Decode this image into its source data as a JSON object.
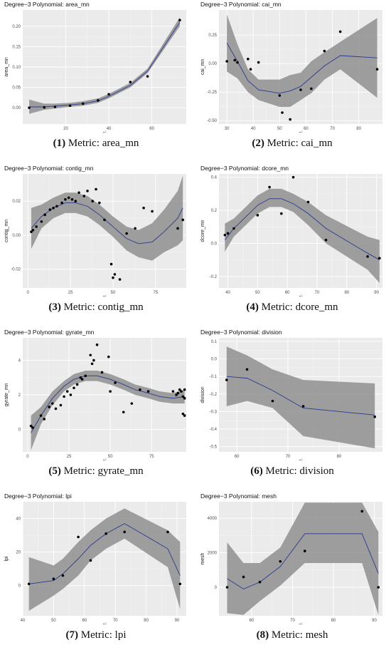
{
  "chart_data": [
    {
      "type": "line",
      "title": "Degree−3 Polynomial: area_mn",
      "xlabel": "ai",
      "ylabel": "area_mn",
      "caption": {
        "num": "(1)",
        "text": "Metric: area_mn"
      },
      "xlim": [
        0,
        76
      ],
      "ylim": [
        -0.04,
        0.24
      ],
      "xticks": [
        20,
        40,
        60
      ],
      "xtick_labels": [
        "20",
        "40",
        "60"
      ],
      "yticks": [
        0.0,
        0.05,
        0.1,
        0.15,
        0.2
      ],
      "ytick_labels": [
        "0.00",
        "0.05",
        "0.10",
        "0.15",
        "0.20"
      ],
      "points": {
        "x": [
          3,
          10,
          15,
          22,
          28,
          35,
          40,
          50,
          58,
          73
        ],
        "y": [
          0.0,
          0.001,
          0.002,
          0.005,
          0.01,
          0.018,
          0.033,
          0.063,
          0.077,
          0.215
        ]
      },
      "fit": {
        "x": [
          3,
          10,
          15,
          22,
          28,
          35,
          40,
          50,
          58,
          73
        ],
        "y": [
          0.002,
          0.002,
          0.004,
          0.007,
          0.01,
          0.017,
          0.028,
          0.055,
          0.09,
          0.21
        ]
      },
      "band_lo": [
        -0.015,
        -0.005,
        -0.002,
        0.002,
        0.005,
        0.012,
        0.023,
        0.05,
        0.085,
        0.2
      ],
      "band_hi": [
        0.02,
        0.01,
        0.01,
        0.012,
        0.016,
        0.023,
        0.034,
        0.061,
        0.096,
        0.222
      ],
      "series": [
        {
          "values": [
            0.002,
            0.002,
            0.004,
            0.007,
            0.01,
            0.017,
            0.028,
            0.055,
            0.09,
            0.21
          ]
        }
      ]
    },
    {
      "type": "line",
      "title": "Degree−3 Polynomial: cai_mn",
      "xlabel": "ai",
      "ylabel": "cai_mn",
      "caption": {
        "num": "(2)",
        "text": "Metric: cai_mn"
      },
      "xlim": [
        27,
        89
      ],
      "ylim": [
        -0.53,
        0.47
      ],
      "xticks": [
        30,
        40,
        50,
        60,
        70,
        80
      ],
      "xtick_labels": [
        "30",
        "40",
        "50",
        "60",
        "70",
        "80"
      ],
      "yticks": [
        -0.5,
        -0.25,
        0.0,
        0.25
      ],
      "ytick_labels": [
        "-0.50",
        "-0.25",
        "0.00",
        "0.25"
      ],
      "points": {
        "x": [
          30,
          33,
          34,
          38,
          39,
          42,
          50,
          51,
          54,
          58,
          62,
          67,
          73,
          87
        ],
        "y": [
          0.02,
          0.03,
          0.01,
          0.04,
          -0.05,
          0.01,
          -0.28,
          -0.43,
          -0.49,
          -0.23,
          -0.22,
          0.11,
          0.28,
          -0.05
        ]
      },
      "fit": {
        "x": [
          30,
          34,
          38,
          42,
          50,
          54,
          58,
          62,
          67,
          73,
          87
        ],
        "y": [
          0.18,
          0.02,
          -0.15,
          -0.23,
          -0.26,
          -0.24,
          -0.2,
          -0.12,
          -0.02,
          0.07,
          0.05
        ]
      },
      "band_lo": [
        -0.07,
        -0.13,
        -0.25,
        -0.32,
        -0.38,
        -0.38,
        -0.32,
        -0.26,
        -0.14,
        -0.05,
        -0.3
      ],
      "band_hi": [
        0.43,
        0.17,
        -0.05,
        -0.14,
        -0.14,
        -0.1,
        -0.08,
        0.02,
        0.1,
        0.19,
        0.4
      ],
      "series": [
        {
          "values": [
            0.18,
            0.02,
            -0.15,
            -0.23,
            -0.26,
            -0.24,
            -0.2,
            -0.12,
            -0.02,
            0.07,
            0.05
          ]
        }
      ]
    },
    {
      "type": "line",
      "title": "Degree−3 Polynomial: contig_mn",
      "xlabel": "ai",
      "ylabel": "contig_mn",
      "caption": {
        "num": "(3)",
        "text": "Metric: contig_mn"
      },
      "xlim": [
        -3,
        93
      ],
      "ylim": [
        -0.031,
        0.036
      ],
      "xticks": [
        0,
        25,
        50,
        75
      ],
      "xtick_labels": [
        "0",
        "25",
        "50",
        "75"
      ],
      "yticks": [
        -0.02,
        0.0,
        0.02
      ],
      "ytick_labels": [
        "-0.02",
        "0.00",
        "0.02"
      ],
      "points": {
        "x": [
          2,
          3,
          5,
          8,
          10,
          13,
          15,
          17,
          20,
          22,
          24,
          26,
          28,
          30,
          33,
          35,
          38,
          40,
          42,
          45,
          49,
          50,
          51,
          54,
          58,
          63,
          68,
          73,
          88,
          91
        ],
        "y": [
          0.002,
          0.003,
          0.005,
          0.008,
          0.012,
          0.015,
          0.016,
          0.017,
          0.019,
          0.021,
          0.022,
          0.021,
          0.02,
          0.025,
          0.023,
          0.026,
          0.02,
          0.027,
          0.019,
          0.009,
          -0.017,
          -0.025,
          -0.023,
          -0.026,
          0.001,
          0.004,
          0.016,
          0.014,
          0.004,
          0.009
        ]
      },
      "fit": {
        "x": [
          2,
          8,
          15,
          22,
          28,
          35,
          42,
          50,
          58,
          65,
          73,
          80,
          88,
          91
        ],
        "y": [
          0.004,
          0.011,
          0.016,
          0.019,
          0.019,
          0.017,
          0.012,
          0.005,
          -0.002,
          -0.005,
          -0.004,
          0.002,
          0.01,
          0.016
        ]
      },
      "band_lo": [
        -0.008,
        0.004,
        0.01,
        0.013,
        0.013,
        0.011,
        0.006,
        -0.001,
        -0.009,
        -0.013,
        -0.015,
        -0.01,
        -0.006,
        -0.003
      ],
      "band_hi": [
        0.016,
        0.018,
        0.022,
        0.025,
        0.025,
        0.023,
        0.018,
        0.011,
        0.005,
        0.003,
        0.007,
        0.015,
        0.026,
        0.035
      ],
      "series": [
        {
          "values": [
            0.004,
            0.011,
            0.016,
            0.019,
            0.019,
            0.017,
            0.012,
            0.005,
            -0.002,
            -0.005,
            -0.004,
            0.002,
            0.01,
            0.016
          ]
        }
      ]
    },
    {
      "type": "line",
      "title": "Degree−3 Polynomial: dcore_mn",
      "xlabel": "ai",
      "ylabel": "dcore_mn",
      "caption": {
        "num": "(4)",
        "text": "Metric: dcore_mn"
      },
      "xlim": [
        37,
        92
      ],
      "ylim": [
        -0.27,
        0.42
      ],
      "xticks": [
        40,
        50,
        60,
        70,
        80,
        90
      ],
      "xtick_labels": [
        "40",
        "50",
        "60",
        "70",
        "80",
        "90"
      ],
      "yticks": [
        -0.2,
        0.0,
        0.2,
        0.4
      ],
      "ytick_labels": [
        "-0.2",
        "0.0",
        "0.2",
        "0.4"
      ],
      "points": {
        "x": [
          39,
          40,
          42,
          50,
          54,
          58,
          62,
          67,
          73,
          87,
          91
        ],
        "y": [
          0.05,
          0.06,
          0.09,
          0.17,
          0.34,
          0.18,
          0.4,
          0.25,
          0.02,
          -0.08,
          -0.09
        ]
      },
      "fit": {
        "x": [
          39,
          42,
          50,
          54,
          58,
          62,
          67,
          73,
          87,
          91
        ],
        "y": [
          0.02,
          0.09,
          0.23,
          0.27,
          0.27,
          0.24,
          0.18,
          0.09,
          -0.06,
          -0.1
        ]
      },
      "band_lo": [
        -0.05,
        0.04,
        0.18,
        0.22,
        0.22,
        0.19,
        0.11,
        0.0,
        -0.16,
        -0.24
      ],
      "band_hi": [
        0.12,
        0.15,
        0.29,
        0.33,
        0.33,
        0.3,
        0.25,
        0.17,
        0.04,
        0.02
      ],
      "series": [
        {
          "values": [
            0.02,
            0.09,
            0.23,
            0.27,
            0.27,
            0.24,
            0.18,
            0.09,
            -0.06,
            -0.1
          ]
        }
      ]
    },
    {
      "type": "line",
      "title": "Degree−3 Polynomial: gyrate_mn",
      "xlabel": "ai",
      "ylabel": "gyrate_mn",
      "caption": {
        "num": "(5)",
        "text": "Metric: gyrate_mn"
      },
      "xlim": [
        -3,
        96
      ],
      "ylim": [
        -1.3,
        5.3
      ],
      "xticks": [
        0,
        25,
        50,
        75
      ],
      "xtick_labels": [
        "0",
        "25",
        "50",
        "75"
      ],
      "yticks": [
        0,
        2,
        4
      ],
      "ytick_labels": [
        "0",
        "2",
        "4"
      ],
      "points": {
        "x": [
          2,
          3,
          8,
          10,
          13,
          15,
          17,
          20,
          22,
          24,
          26,
          28,
          30,
          32,
          33,
          35,
          38,
          39,
          40,
          42,
          45,
          49,
          50,
          53,
          58,
          63,
          68,
          73,
          88,
          90,
          91,
          92,
          93,
          94,
          94,
          95,
          95,
          95
        ],
        "y": [
          0.2,
          0.1,
          0.8,
          0.6,
          1.3,
          1.5,
          1.2,
          1.4,
          1.9,
          2.2,
          2.0,
          2.4,
          2.6,
          3.0,
          2.9,
          3.1,
          4.3,
          3.8,
          4.0,
          4.9,
          3.3,
          4.2,
          2.2,
          2.7,
          1.0,
          1.5,
          2.3,
          2.2,
          2.2,
          2.0,
          2.1,
          2.3,
          2.2,
          1.9,
          0.9,
          0.8,
          1.8,
          2.3
        ]
      },
      "fit": {
        "x": [
          2,
          8,
          15,
          22,
          28,
          35,
          42,
          50,
          58,
          65,
          73,
          80,
          88,
          95
        ],
        "y": [
          -0.2,
          0.8,
          1.8,
          2.5,
          2.9,
          3.1,
          3.1,
          2.9,
          2.6,
          2.3,
          2.1,
          1.9,
          1.8,
          1.9
        ]
      },
      "band_lo": [
        -1.2,
        0.3,
        1.4,
        2.2,
        2.6,
        2.8,
        2.8,
        2.6,
        2.3,
        2.0,
        1.8,
        1.6,
        1.5,
        1.5
      ],
      "band_hi": [
        0.8,
        1.3,
        2.2,
        2.8,
        3.2,
        3.4,
        3.4,
        3.2,
        2.9,
        2.6,
        2.4,
        2.2,
        2.1,
        2.3
      ],
      "series": [
        {
          "values": [
            -0.2,
            0.8,
            1.8,
            2.5,
            2.9,
            3.1,
            3.1,
            2.9,
            2.6,
            2.3,
            2.1,
            1.9,
            1.8,
            1.9
          ]
        }
      ]
    },
    {
      "type": "line",
      "title": "Degree−3 Polynomial: division",
      "xlabel": "ai",
      "ylabel": "division",
      "caption": {
        "num": "(6)",
        "text": "Metric: division"
      },
      "xlim": [
        56.5,
        88.5
      ],
      "ylim": [
        -0.53,
        0.12
      ],
      "xticks": [
        60,
        70,
        80
      ],
      "xtick_labels": [
        "60",
        "70",
        "80"
      ],
      "yticks": [
        0.1,
        0.0,
        -0.1,
        -0.2,
        -0.3,
        -0.4,
        -0.5
      ],
      "ytick_labels": [
        "0.1",
        "0.0",
        "-0.1",
        "-0.2",
        "-0.3",
        "-0.4",
        "-0.5"
      ],
      "points": {
        "x": [
          58,
          62,
          67,
          73,
          87
        ],
        "y": [
          -0.12,
          -0.06,
          -0.24,
          -0.27,
          -0.33
        ]
      },
      "fit": {
        "x": [
          58,
          62,
          67,
          73,
          87
        ],
        "y": [
          -0.1,
          -0.11,
          -0.18,
          -0.28,
          -0.32
        ]
      },
      "band_lo": [
        -0.27,
        -0.24,
        -0.28,
        -0.44,
        -0.51
      ],
      "band_hi": [
        0.07,
        0.02,
        -0.06,
        -0.12,
        -0.14
      ],
      "series": [
        {
          "values": [
            -0.1,
            -0.11,
            -0.18,
            -0.28,
            -0.32
          ]
        }
      ]
    },
    {
      "type": "line",
      "title": "Degree−3 Polynomial: lpi",
      "xlabel": "ai",
      "ylabel": "lpi",
      "caption": {
        "num": "(7)",
        "text": "Metric: lpi"
      },
      "xlim": [
        40,
        93
      ],
      "ylim": [
        -18,
        50
      ],
      "xticks": [
        40,
        50,
        60,
        70,
        80,
        90
      ],
      "xtick_labels": [
        "40",
        "50",
        "60",
        "70",
        "80",
        "90"
      ],
      "yticks": [
        0,
        20,
        40
      ],
      "ytick_labels": [
        "0",
        "20",
        "40"
      ],
      "points": {
        "x": [
          42,
          50,
          53,
          58,
          62,
          67,
          73,
          87,
          91
        ],
        "y": [
          1,
          4,
          6,
          29,
          15,
          31,
          32,
          32,
          1
        ]
      },
      "fit": {
        "x": [
          42,
          50,
          53,
          58,
          62,
          67,
          73,
          87,
          91
        ],
        "y": [
          1,
          3,
          7,
          16,
          24,
          31,
          37,
          22,
          6
        ]
      },
      "band_lo": [
        -15,
        -6,
        -2,
        6,
        15,
        22,
        28,
        11,
        -14
      ],
      "band_hi": [
        17,
        12,
        16,
        26,
        33,
        40,
        46,
        33,
        26
      ],
      "series": [
        {
          "values": [
            1,
            3,
            7,
            16,
            24,
            31,
            37,
            22,
            6
          ]
        }
      ]
    },
    {
      "type": "line",
      "title": "Degree−3 Polynomial: mesh",
      "xlabel": "ai",
      "ylabel": "mesh",
      "caption": {
        "num": "(8)",
        "text": "Metric: mesh"
      },
      "xlim": [
        52,
        92
      ],
      "ylim": [
        -1650,
        4950
      ],
      "xticks": [
        60,
        70,
        80,
        90
      ],
      "xtick_labels": [
        "60",
        "70",
        "80",
        "90"
      ],
      "yticks": [
        0,
        2000,
        4000
      ],
      "ytick_labels": [
        "0",
        "2000",
        "4000"
      ],
      "points": {
        "x": [
          54,
          58,
          62,
          67,
          73,
          87,
          91
        ],
        "y": [
          0,
          600,
          300,
          1500,
          2100,
          4400,
          0
        ]
      },
      "fit": {
        "x": [
          54,
          58,
          62,
          67,
          73,
          87,
          91
        ],
        "y": [
          500,
          -100,
          300,
          1200,
          3100,
          3100,
          800
        ]
      },
      "band_lo": [
        -1500,
        -1600,
        -800,
        100,
        1400,
        1400,
        -1600
      ],
      "band_hi": [
        2600,
        1400,
        1400,
        2300,
        4900,
        4900,
        3200
      ],
      "series": [
        {
          "values": [
            500,
            -100,
            300,
            1200,
            3100,
            3100,
            800
          ]
        }
      ]
    }
  ]
}
